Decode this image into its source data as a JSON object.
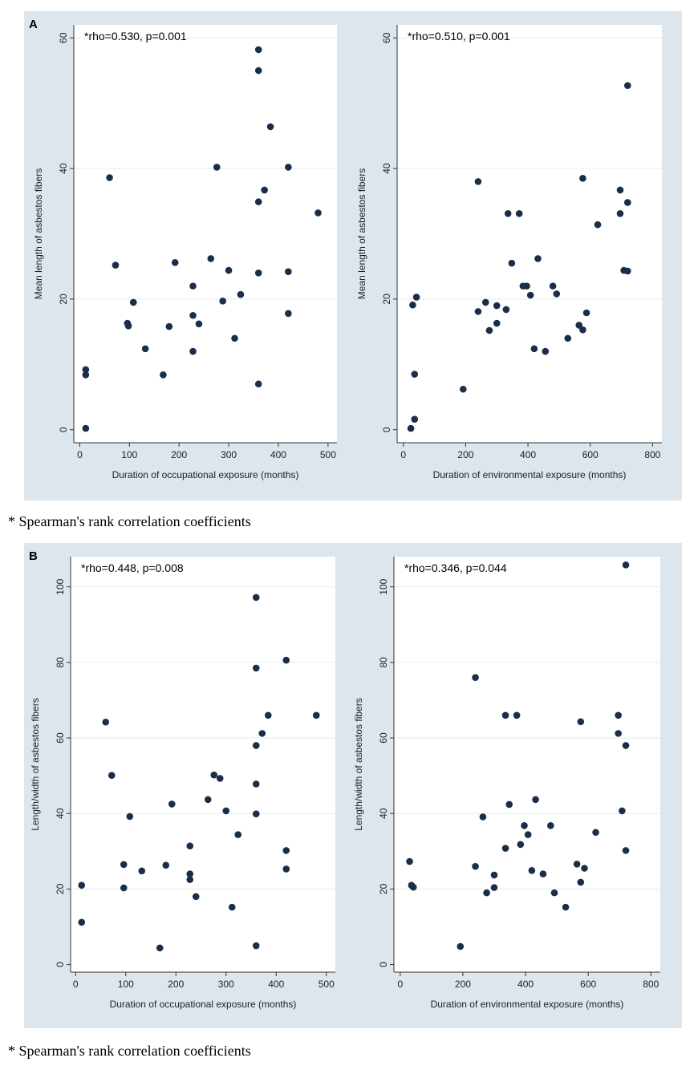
{
  "panels": [
    {
      "label": "A",
      "footnote": "* Spearman's rank correlation coefficients"
    },
    {
      "label": "B",
      "footnote": "* Spearman's rank correlation coefficients"
    }
  ],
  "colors": {
    "marker": "#1a2e4a",
    "grid": "#e6eaee",
    "plot_bg": "#ffffff",
    "panel_bg": "#dce6ec"
  },
  "chart_data": [
    {
      "type": "scatter",
      "panel": "A",
      "annotation": "*rho=0.530, p=0.001",
      "xlabel": "Duration of occupational exposure (months)",
      "ylabel": "Mean length of asbestos fibers",
      "xlim": [
        -12,
        518
      ],
      "ylim": [
        -2,
        62
      ],
      "xticks": [
        0,
        100,
        200,
        300,
        400,
        500
      ],
      "yticks": [
        0,
        20,
        40,
        60
      ],
      "points": [
        [
          12,
          9.2
        ],
        [
          12,
          8.4
        ],
        [
          12,
          0.2
        ],
        [
          60,
          38.6
        ],
        [
          72,
          25.2
        ],
        [
          96,
          16.3
        ],
        [
          98,
          15.9
        ],
        [
          108,
          19.5
        ],
        [
          132,
          12.4
        ],
        [
          168,
          8.4
        ],
        [
          180,
          15.8
        ],
        [
          192,
          25.6
        ],
        [
          228,
          12
        ],
        [
          228,
          17.5
        ],
        [
          228,
          22
        ],
        [
          240,
          16.2
        ],
        [
          264,
          26.2
        ],
        [
          276,
          40.2
        ],
        [
          288,
          19.7
        ],
        [
          300,
          24.4
        ],
        [
          312,
          14
        ],
        [
          324,
          20.7
        ],
        [
          360,
          58.2
        ],
        [
          360,
          55
        ],
        [
          360,
          34.9
        ],
        [
          360,
          24
        ],
        [
          360,
          7
        ],
        [
          372,
          36.7
        ],
        [
          384,
          46.4
        ],
        [
          420,
          40.2
        ],
        [
          420,
          24.2
        ],
        [
          420,
          17.8
        ],
        [
          480,
          33.2
        ]
      ]
    },
    {
      "type": "scatter",
      "panel": "A",
      "annotation": "*rho=0.510, p=0.001",
      "xlabel": "Duration of environmental exposure (months)",
      "ylabel": "Mean length of asbestos fibers",
      "xlim": [
        -20,
        830
      ],
      "ylim": [
        -2,
        62
      ],
      "xticks": [
        0,
        200,
        400,
        600,
        800
      ],
      "yticks": [
        0,
        20,
        40,
        60
      ],
      "points": [
        [
          24,
          0.2
        ],
        [
          30,
          19.1
        ],
        [
          36,
          1.6
        ],
        [
          36,
          8.5
        ],
        [
          42,
          20.3
        ],
        [
          192,
          6.2
        ],
        [
          240,
          18.1
        ],
        [
          240,
          38
        ],
        [
          264,
          19.5
        ],
        [
          276,
          15.2
        ],
        [
          300,
          19
        ],
        [
          300,
          16.3
        ],
        [
          330,
          18.4
        ],
        [
          336,
          33.1
        ],
        [
          348,
          25.5
        ],
        [
          372,
          33.1
        ],
        [
          384,
          22
        ],
        [
          396,
          22
        ],
        [
          408,
          20.6
        ],
        [
          420,
          12.4
        ],
        [
          432,
          26.2
        ],
        [
          456,
          12
        ],
        [
          480,
          22
        ],
        [
          492,
          20.8
        ],
        [
          528,
          14
        ],
        [
          564,
          16
        ],
        [
          576,
          38.5
        ],
        [
          576,
          15.3
        ],
        [
          588,
          17.9
        ],
        [
          624,
          31.4
        ],
        [
          696,
          36.7
        ],
        [
          696,
          33.1
        ],
        [
          708,
          24.4
        ],
        [
          720,
          52.7
        ],
        [
          720,
          34.8
        ],
        [
          720,
          24.3
        ]
      ]
    },
    {
      "type": "scatter",
      "panel": "B",
      "annotation": "*rho=0.448, p=0.008",
      "xlabel": "Duration of occupational exposure (months)",
      "ylabel": "Length/width of asbestos fibers",
      "xlim": [
        -10,
        518
      ],
      "ylim": [
        -2,
        108
      ],
      "xticks": [
        0,
        100,
        200,
        300,
        400,
        500
      ],
      "yticks": [
        0,
        20,
        40,
        60,
        80,
        100
      ],
      "points": [
        [
          12,
          21
        ],
        [
          12,
          11.2
        ],
        [
          60,
          64.2
        ],
        [
          72,
          50.1
        ],
        [
          96,
          26.5
        ],
        [
          96,
          20.3
        ],
        [
          108,
          39.2
        ],
        [
          132,
          24.8
        ],
        [
          168,
          4.4
        ],
        [
          180,
          26.3
        ],
        [
          192,
          42.5
        ],
        [
          228,
          31.4
        ],
        [
          228,
          24
        ],
        [
          228,
          22.5
        ],
        [
          240,
          18
        ],
        [
          264,
          43.7
        ],
        [
          276,
          50.2
        ],
        [
          288,
          49.3
        ],
        [
          300,
          40.7
        ],
        [
          312,
          15.2
        ],
        [
          324,
          34.4
        ],
        [
          360,
          97.2
        ],
        [
          360,
          78.5
        ],
        [
          360,
          58
        ],
        [
          360,
          47.8
        ],
        [
          360,
          39.9
        ],
        [
          360,
          5
        ],
        [
          372,
          61.2
        ],
        [
          384,
          66
        ],
        [
          420,
          80.6
        ],
        [
          420,
          30.2
        ],
        [
          420,
          25.3
        ],
        [
          480,
          66
        ]
      ]
    },
    {
      "type": "scatter",
      "panel": "B",
      "annotation": "*rho=0.346, p=0.044",
      "xlabel": "Duration of environmental exposure (months)",
      "ylabel": "Length/width of asbestos fibers",
      "xlim": [
        -20,
        830
      ],
      "ylim": [
        -2,
        108
      ],
      "xticks": [
        0,
        200,
        400,
        600,
        800
      ],
      "yticks": [
        0,
        20,
        40,
        60,
        80,
        100
      ],
      "points": [
        [
          30,
          27.3
        ],
        [
          36,
          21
        ],
        [
          42,
          20.5
        ],
        [
          192,
          4.8
        ],
        [
          240,
          76
        ],
        [
          240,
          26
        ],
        [
          264,
          39.1
        ],
        [
          276,
          19
        ],
        [
          300,
          23.7
        ],
        [
          300,
          20.4
        ],
        [
          336,
          66
        ],
        [
          336,
          30.8
        ],
        [
          348,
          42.4
        ],
        [
          372,
          66
        ],
        [
          384,
          31.8
        ],
        [
          396,
          36.8
        ],
        [
          408,
          34.4
        ],
        [
          420,
          24.9
        ],
        [
          432,
          43.7
        ],
        [
          456,
          24
        ],
        [
          480,
          36.8
        ],
        [
          492,
          19
        ],
        [
          528,
          15.2
        ],
        [
          564,
          26.6
        ],
        [
          576,
          64.3
        ],
        [
          576,
          21.8
        ],
        [
          588,
          25.5
        ],
        [
          624,
          35
        ],
        [
          696,
          66
        ],
        [
          696,
          61.2
        ],
        [
          708,
          40.7
        ],
        [
          720,
          105.8
        ],
        [
          720,
          58
        ],
        [
          720,
          30.2
        ]
      ]
    }
  ]
}
